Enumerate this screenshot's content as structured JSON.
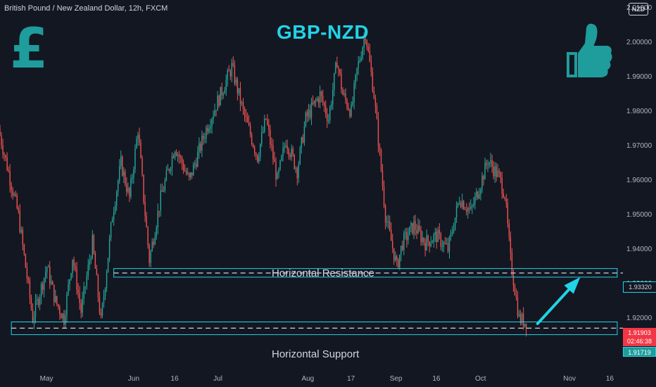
{
  "header": {
    "symbol_line": "British Pound / New Zealand Dollar, 12h, FXCM",
    "currency_badge": "NZD"
  },
  "chart_data": {
    "type": "candlestick",
    "title": "GBP-NZD",
    "ylim": [
      1.905,
      2.0125
    ],
    "y_ticks": [
      "2.01000",
      "2.00000",
      "1.99000",
      "1.98000",
      "1.97000",
      "1.96000",
      "1.95000",
      "1.94000",
      "1.93000",
      "1.92000",
      "1.91000"
    ],
    "x_ticks": [
      "May",
      "Jun",
      "16",
      "Jul",
      "Aug",
      "17",
      "Sep",
      "16",
      "Oct",
      "Nov",
      "16"
    ],
    "x_range": [
      "2024-04-15",
      "2024-11-20"
    ],
    "x_tick_dates": [
      "2024-05-01",
      "2024-06-01",
      "2024-06-16",
      "2024-07-01",
      "2024-08-01",
      "2024-08-17",
      "2024-09-01",
      "2024-09-16",
      "2024-10-01",
      "2024-11-01",
      "2024-11-16"
    ],
    "path": [
      [
        "2024-04-15",
        1.975
      ],
      [
        "2024-04-22",
        1.95
      ],
      [
        "2024-04-27",
        1.92
      ],
      [
        "2024-05-02",
        1.935
      ],
      [
        "2024-05-05",
        1.925
      ],
      [
        "2024-05-08",
        1.92
      ],
      [
        "2024-05-11",
        1.938
      ],
      [
        "2024-05-14",
        1.922
      ],
      [
        "2024-05-18",
        1.942
      ],
      [
        "2024-05-21",
        1.919
      ],
      [
        "2024-05-25",
        1.95
      ],
      [
        "2024-05-28",
        1.965
      ],
      [
        "2024-05-31",
        1.955
      ],
      [
        "2024-06-03",
        1.975
      ],
      [
        "2024-06-05",
        1.955
      ],
      [
        "2024-06-07",
        1.937
      ],
      [
        "2024-06-11",
        1.955
      ],
      [
        "2024-06-16",
        1.97
      ],
      [
        "2024-06-21",
        1.96
      ],
      [
        "2024-06-27",
        1.975
      ],
      [
        "2024-07-02",
        1.985
      ],
      [
        "2024-07-06",
        1.993
      ],
      [
        "2024-07-10",
        1.98
      ],
      [
        "2024-07-15",
        1.967
      ],
      [
        "2024-07-18",
        1.978
      ],
      [
        "2024-07-22",
        1.96
      ],
      [
        "2024-07-25",
        1.972
      ],
      [
        "2024-07-29",
        1.963
      ],
      [
        "2024-08-01",
        1.978
      ],
      [
        "2024-08-06",
        1.985
      ],
      [
        "2024-08-09",
        1.978
      ],
      [
        "2024-08-12",
        1.995
      ],
      [
        "2024-08-14",
        1.985
      ],
      [
        "2024-08-17",
        1.98
      ],
      [
        "2024-08-19",
        1.992
      ],
      [
        "2024-08-22",
        2.003
      ],
      [
        "2024-08-25",
        1.985
      ],
      [
        "2024-08-29",
        1.95
      ],
      [
        "2024-09-02",
        1.935
      ],
      [
        "2024-09-04",
        1.942
      ],
      [
        "2024-09-08",
        1.947
      ],
      [
        "2024-09-12",
        1.942
      ],
      [
        "2024-09-16",
        1.944
      ],
      [
        "2024-09-20",
        1.94
      ],
      [
        "2024-09-24",
        1.955
      ],
      [
        "2024-09-28",
        1.951
      ],
      [
        "2024-10-01",
        1.958
      ],
      [
        "2024-10-04",
        1.966
      ],
      [
        "2024-10-08",
        1.961
      ],
      [
        "2024-10-10",
        1.956
      ],
      [
        "2024-10-12",
        1.937
      ],
      [
        "2024-10-15",
        1.92
      ],
      [
        "2024-10-17",
        1.919
      ]
    ],
    "current_price": "1.91903",
    "countdown": "02:46:38",
    "annotations": [
      {
        "label": "Horizontal Resistance",
        "price": "1.93320",
        "zone": [
          1.932,
          1.9345
        ],
        "x_range": [
          "2024-05-25",
          "2024-11-18"
        ]
      },
      {
        "label": "Horizontal Support",
        "price": "1.91719",
        "zone": [
          1.9153,
          1.919
        ],
        "x_range": [
          "2024-04-19",
          "2024-11-18"
        ]
      }
    ],
    "arrow": {
      "from": [
        "2024-10-21",
        1.9185
      ],
      "to": [
        "2024-11-05",
        1.932
      ]
    },
    "colors": {
      "background": "#131722",
      "up": "#26a69a",
      "down": "#ef5350",
      "zone": "#22d3e6",
      "title": "#22d3e6",
      "icons": "#1f9c9c",
      "current_tag": "#f23645"
    },
    "icons": [
      "pound-sign-icon",
      "thumbs-up-icon"
    ]
  }
}
